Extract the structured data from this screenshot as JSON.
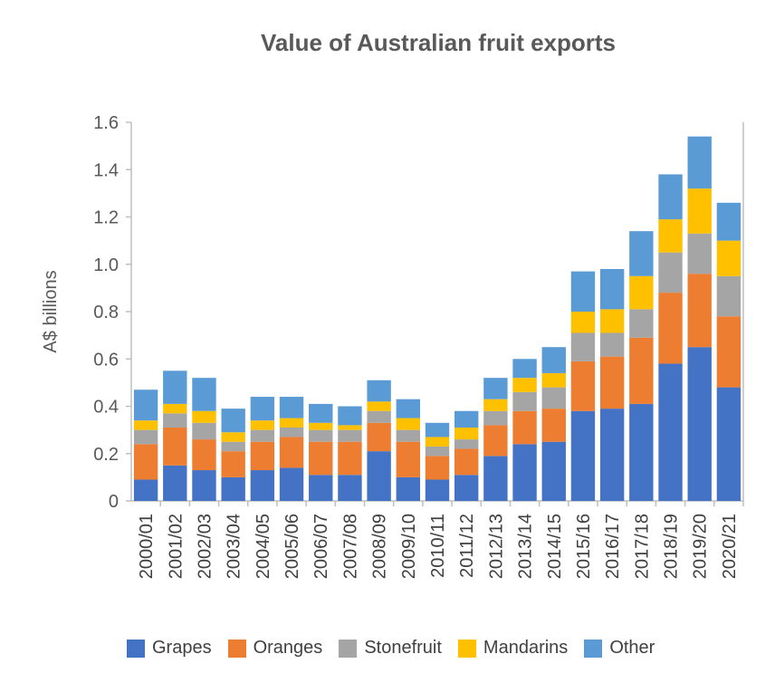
{
  "chart_data": {
    "type": "bar",
    "stacked": true,
    "title": "Value of Australian fruit exports",
    "xlabel": "",
    "ylabel": "A$ billions",
    "ylim": [
      0,
      1.6
    ],
    "yticks": [
      0,
      0.2,
      0.4,
      0.6,
      0.8,
      1.0,
      1.2,
      1.4,
      1.6
    ],
    "ytick_labels": [
      "0",
      "0.2",
      "0.4",
      "0.6",
      "0.8",
      "1.0",
      "1.2",
      "1.4",
      "1.6"
    ],
    "grid": false,
    "legend_position": "bottom",
    "categories": [
      "2000/01",
      "2001/02",
      "2002/03",
      "2003/04",
      "2004/05",
      "2005/06",
      "2006/07",
      "2007/08",
      "2008/09",
      "2009/10",
      "2010/11",
      "2011/12",
      "2012/13",
      "2013/14",
      "2014/15",
      "2015/16",
      "2016/17",
      "2017/18",
      "2018/19",
      "2019/20",
      "2020/21"
    ],
    "series": [
      {
        "name": "Grapes",
        "color": "#4472C4",
        "values": [
          0.09,
          0.15,
          0.13,
          0.1,
          0.13,
          0.14,
          0.11,
          0.11,
          0.21,
          0.1,
          0.09,
          0.11,
          0.19,
          0.24,
          0.25,
          0.38,
          0.39,
          0.41,
          0.58,
          0.65,
          0.48
        ]
      },
      {
        "name": "Oranges",
        "color": "#ED7D31",
        "values": [
          0.15,
          0.16,
          0.13,
          0.11,
          0.12,
          0.13,
          0.14,
          0.14,
          0.12,
          0.15,
          0.1,
          0.11,
          0.13,
          0.14,
          0.14,
          0.21,
          0.22,
          0.28,
          0.3,
          0.31,
          0.3
        ]
      },
      {
        "name": "Stonefruit",
        "color": "#A5A5A5",
        "values": [
          0.06,
          0.06,
          0.07,
          0.04,
          0.05,
          0.04,
          0.05,
          0.05,
          0.05,
          0.05,
          0.04,
          0.04,
          0.06,
          0.08,
          0.09,
          0.12,
          0.1,
          0.12,
          0.17,
          0.17,
          0.17
        ]
      },
      {
        "name": "Mandarins",
        "color": "#FFC000",
        "values": [
          0.04,
          0.04,
          0.05,
          0.04,
          0.04,
          0.04,
          0.03,
          0.02,
          0.04,
          0.05,
          0.04,
          0.05,
          0.05,
          0.06,
          0.06,
          0.09,
          0.1,
          0.14,
          0.14,
          0.19,
          0.15
        ]
      },
      {
        "name": "Other",
        "color": "#5B9BD5",
        "values": [
          0.13,
          0.14,
          0.14,
          0.1,
          0.1,
          0.09,
          0.08,
          0.08,
          0.09,
          0.08,
          0.06,
          0.07,
          0.09,
          0.08,
          0.11,
          0.17,
          0.17,
          0.19,
          0.19,
          0.22,
          0.16
        ]
      }
    ]
  }
}
